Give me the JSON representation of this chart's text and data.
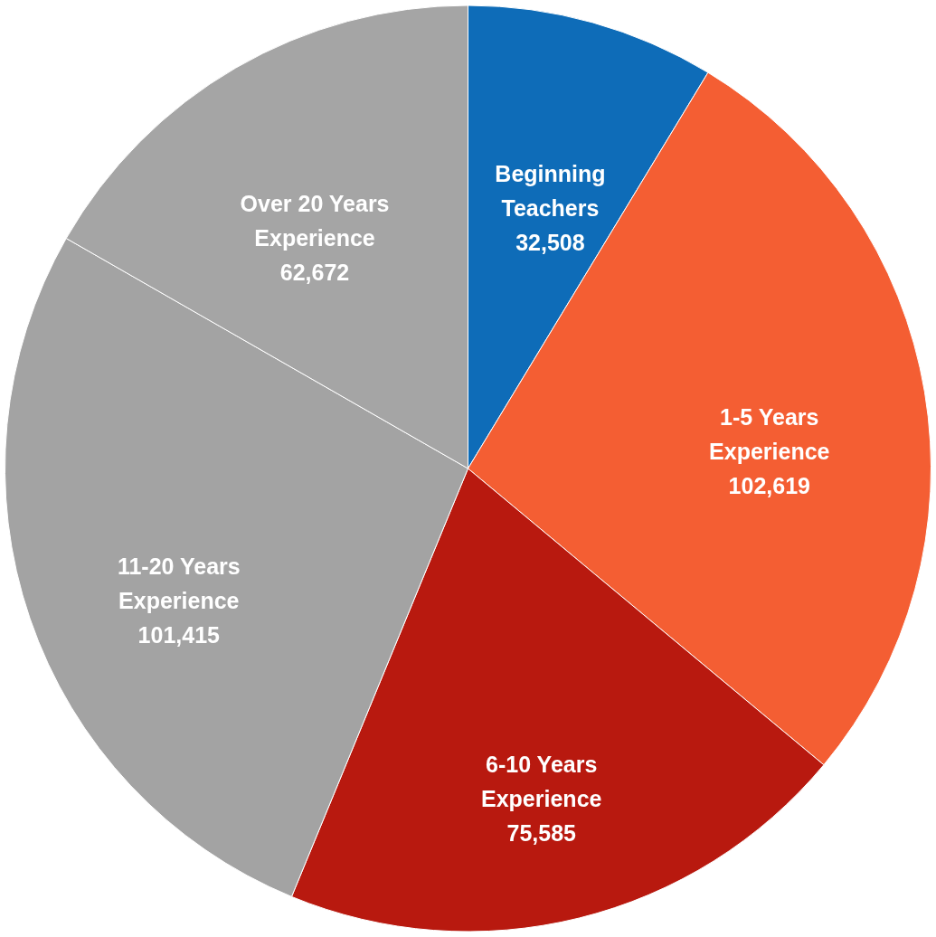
{
  "chart_data": {
    "type": "pie",
    "categories": [
      "Beginning Teachers",
      "1-5 Years Experience",
      "6-10 Years Experience",
      "11-20 Years Experience",
      "Over 20 Years Experience"
    ],
    "values": [
      32508,
      102619,
      75585,
      101415,
      62672
    ],
    "colors": [
      "#0e6cb8",
      "#f45e33",
      "#b8190f",
      "#a3a3a3",
      "#a5a5a5"
    ],
    "value_labels": [
      "32,508",
      "102,619",
      "75,585",
      "101,415",
      "62,672"
    ]
  }
}
